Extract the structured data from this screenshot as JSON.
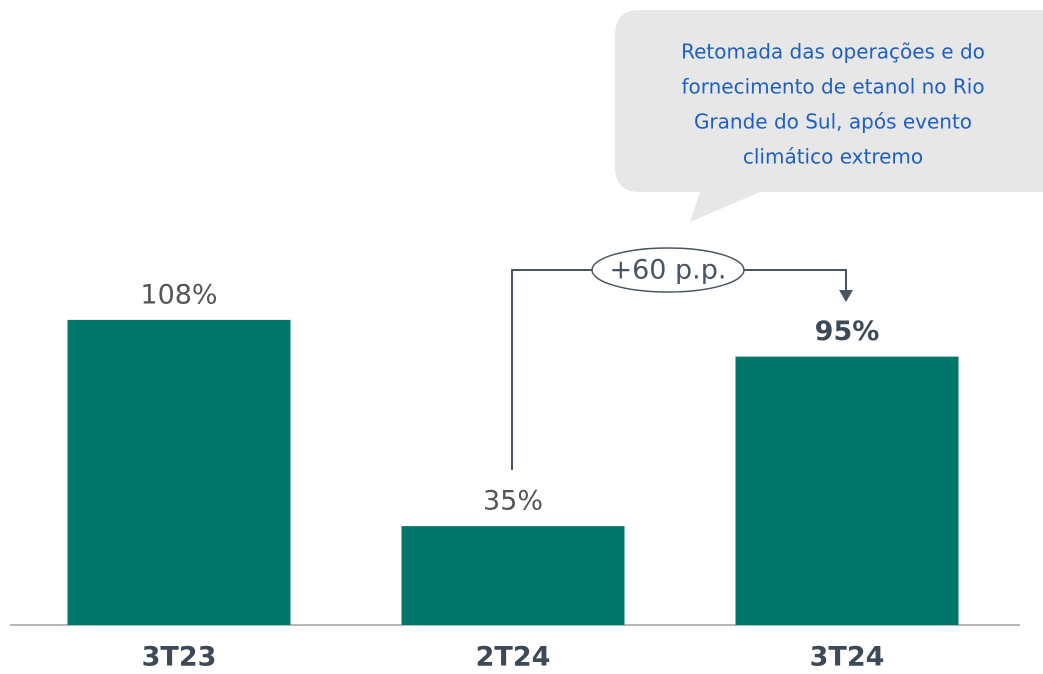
{
  "chart_data": {
    "type": "bar",
    "categories": [
      "3T23",
      "2T24",
      "3T24"
    ],
    "values": [
      108,
      35,
      95
    ],
    "value_labels": [
      "108%",
      "35%",
      "95%"
    ],
    "color": "#00766a",
    "ylim": [
      0,
      120
    ],
    "change_label": "+60 p.p.",
    "callout": [
      "Retomada das operações e  do",
      "fornecimento de etanol no Rio",
      "Grande do Sul, após evento",
      "climático extremo"
    ]
  }
}
